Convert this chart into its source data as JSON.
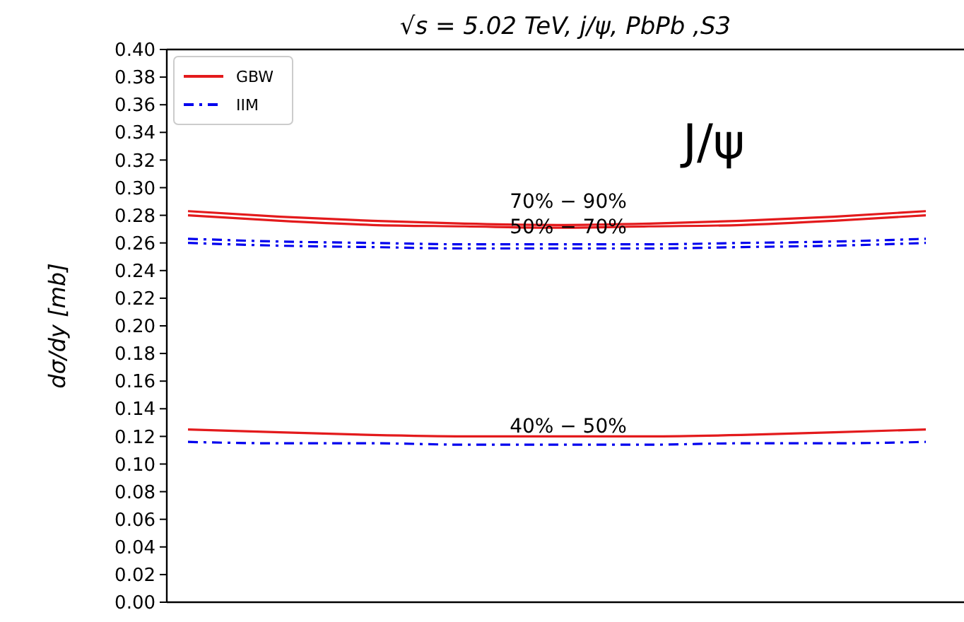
{
  "chart_data": {
    "type": "line",
    "title": "√s = 5.02 TeV,  j/ψ,   PbPb ,S3",
    "ylabel": "dσ/dy [mb]",
    "categories": [
      null,
      null,
      null,
      null,
      null,
      null,
      null,
      null,
      null
    ],
    "series": [
      {
        "name": "GBW",
        "color": "#e31a1c",
        "line_style": "solid",
        "values": [
          0.283,
          0.279,
          0.276,
          0.274,
          0.273,
          0.274,
          0.276,
          0.279,
          0.283
        ]
      },
      {
        "color": "#e31a1c",
        "line_style": "solid",
        "values": [
          0.28,
          0.276,
          0.273,
          0.272,
          0.271,
          0.272,
          0.273,
          0.276,
          0.28
        ]
      },
      {
        "color": "#e31a1c",
        "line_style": "solid",
        "values": [
          0.125,
          0.123,
          0.121,
          0.12,
          0.12,
          0.12,
          0.121,
          0.123,
          0.125
        ]
      },
      {
        "name": "IIM",
        "color": "#0000ee",
        "line_style": "dashed",
        "values": [
          0.263,
          0.261,
          0.26,
          0.259,
          0.259,
          0.259,
          0.26,
          0.261,
          0.263
        ]
      },
      {
        "color": "#0000ee",
        "line_style": "dashed",
        "values": [
          0.26,
          0.258,
          0.257,
          0.256,
          0.256,
          0.256,
          0.257,
          0.258,
          0.26
        ]
      },
      {
        "color": "#0000ee",
        "line_style": "dashed",
        "values": [
          0.116,
          0.115,
          0.115,
          0.114,
          0.114,
          0.114,
          0.115,
          0.115,
          0.116
        ]
      }
    ],
    "annotations": [
      "70% − 90%",
      "50% − 70%",
      "40% − 50%",
      "J/ψ"
    ],
    "ylim": [
      0,
      0.4
    ],
    "yticks": [
      {
        "value": 0,
        "label": "0.00"
      },
      {
        "value": 0.02,
        "label": "0.02"
      },
      {
        "value": 0.04,
        "label": "0.04"
      },
      {
        "value": 0.06,
        "label": "0.06"
      },
      {
        "value": 0.08,
        "label": "0.08"
      },
      {
        "value": 0.1,
        "label": "0.10"
      },
      {
        "value": 0.12,
        "label": "0.12"
      },
      {
        "value": 0.14,
        "label": "0.14"
      },
      {
        "value": 0.16,
        "label": "0.16"
      },
      {
        "value": 0.18,
        "label": "0.18"
      },
      {
        "value": 0.2,
        "label": "0.20"
      },
      {
        "value": 0.22,
        "label": "0.22"
      },
      {
        "value": 0.24,
        "label": "0.24"
      },
      {
        "value": 0.26,
        "label": "0.26"
      },
      {
        "value": 0.28,
        "label": "0.28"
      },
      {
        "value": 0.3,
        "label": "0.30"
      },
      {
        "value": 0.32,
        "label": "0.32"
      },
      {
        "value": 0.34,
        "label": "0.34"
      },
      {
        "value": 0.36,
        "label": "0.36"
      },
      {
        "value": 0.38,
        "label": "0.38"
      },
      {
        "value": 0.4,
        "label": "0.40"
      }
    ],
    "tick_labels": "y",
    "legend": "top left",
    "grid": false,
    "marker": "none"
  }
}
